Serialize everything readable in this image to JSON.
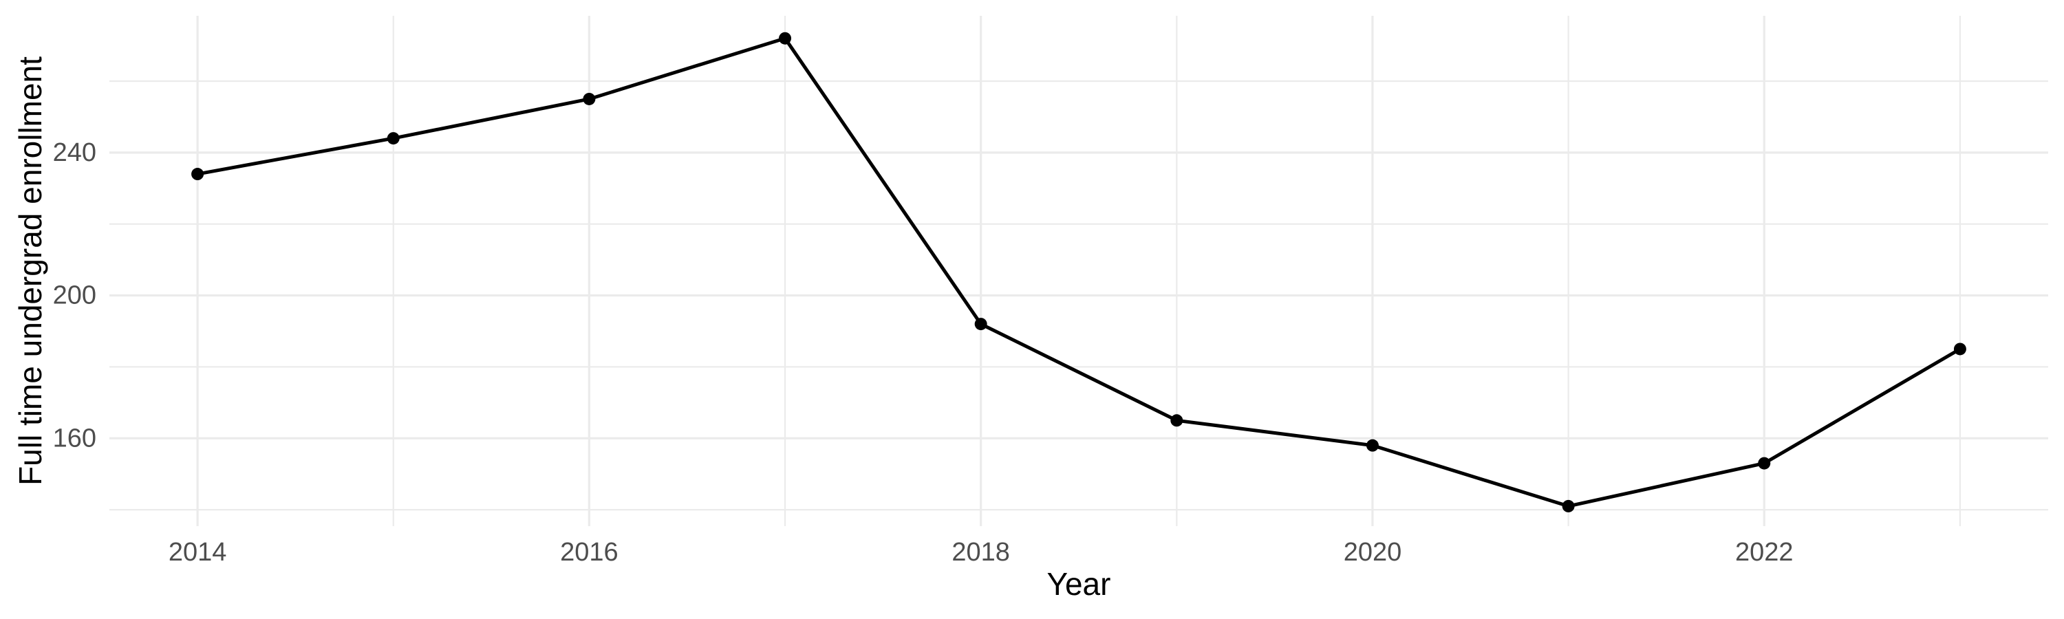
{
  "chart_data": {
    "type": "line",
    "title": "",
    "xlabel": "Year",
    "ylabel": "Full time undergrad enrollment",
    "x": [
      2014,
      2015,
      2016,
      2017,
      2018,
      2019,
      2020,
      2021,
      2022,
      2023
    ],
    "series": [
      {
        "name": "Full time undergrad enrollment",
        "values": [
          234,
          244,
          255,
          272,
          192,
          165,
          158,
          141,
          153,
          185
        ]
      }
    ],
    "x_major_ticks": [
      2014,
      2016,
      2018,
      2020,
      2022
    ],
    "x_minor_gridlines": [
      2015,
      2017,
      2019,
      2021,
      2023
    ],
    "y_major_ticks": [
      160,
      200,
      240
    ],
    "y_minor_gridlines": [
      140,
      180,
      220,
      260
    ],
    "xlim": [
      2013.55,
      2023.45
    ],
    "ylim": [
      135.4,
      278.3
    ],
    "grid": true,
    "legend_position": "none",
    "colors": {
      "line": "#000000",
      "point": "#000000",
      "gridline": "#EBEBEB",
      "tick_label": "#4D4D4D",
      "axis_title": "#000000",
      "background": "#FFFFFF"
    }
  }
}
